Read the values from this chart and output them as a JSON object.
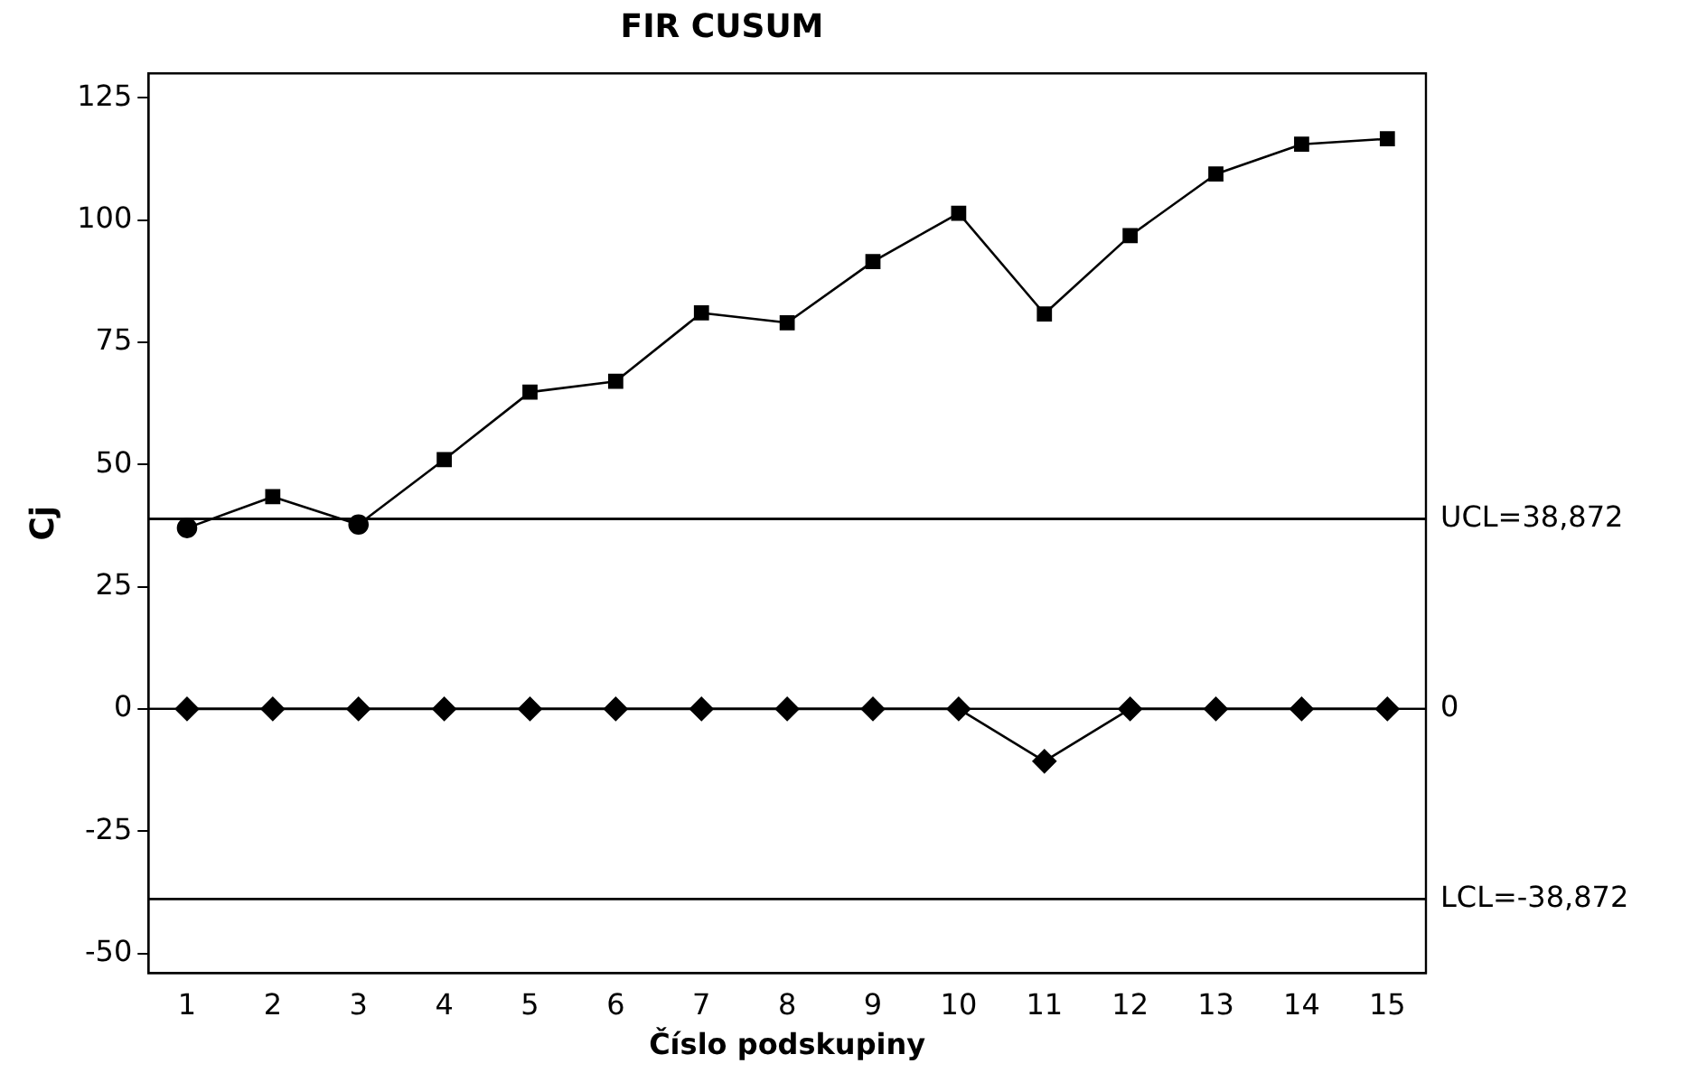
{
  "chart_data": {
    "type": "line",
    "title": "FIR CUSUM",
    "xlabel": "Číslo podskupiny",
    "ylabel": "Cj",
    "x": [
      1,
      2,
      3,
      4,
      5,
      6,
      7,
      8,
      9,
      10,
      11,
      12,
      13,
      14,
      15
    ],
    "series": [
      {
        "color": "#000000",
        "marker": "none",
        "values": [
          37,
          43.4,
          37.7,
          51,
          64.8,
          67,
          81,
          79,
          91.5,
          101.4,
          80.8,
          96.8,
          109.4,
          115.5,
          116.6
        ]
      },
      {
        "type": "scatter",
        "color": "#000000",
        "marker": "square",
        "values": [
          null,
          43.4,
          null,
          51,
          64.8,
          67,
          81,
          79,
          91.5,
          101.4,
          80.8,
          96.8,
          109.4,
          115.5,
          116.6
        ]
      },
      {
        "type": "scatter",
        "color": "#000000",
        "marker": "circle",
        "x": [
          1,
          3
        ],
        "values": [
          37,
          37.7
        ]
      },
      {
        "color": "#000000",
        "marker": "diamond",
        "values": [
          0,
          0,
          0,
          0,
          0,
          0,
          0,
          0,
          0,
          0,
          -10.7,
          0,
          0,
          0,
          0
        ]
      }
    ],
    "xlim": [
      0.55,
      15.45
    ],
    "ylim": [
      -54,
      130
    ],
    "xticks": [
      1,
      2,
      3,
      4,
      5,
      6,
      7,
      8,
      9,
      10,
      11,
      12,
      13,
      14,
      15
    ],
    "yticks": [
      -50,
      -25,
      0,
      25,
      50,
      75,
      100,
      125
    ],
    "ref_lines": [
      {
        "axis": "y",
        "value": 38.872,
        "label": "UCL=38,872",
        "color": "#000000"
      },
      {
        "axis": "y",
        "value": 0,
        "label": "0",
        "color": "#000000"
      },
      {
        "axis": "y",
        "value": -38.872,
        "label": "LCL=-38,872",
        "color": "#000000"
      }
    ],
    "grid": false,
    "legend": false,
    "line_style": "solid"
  }
}
